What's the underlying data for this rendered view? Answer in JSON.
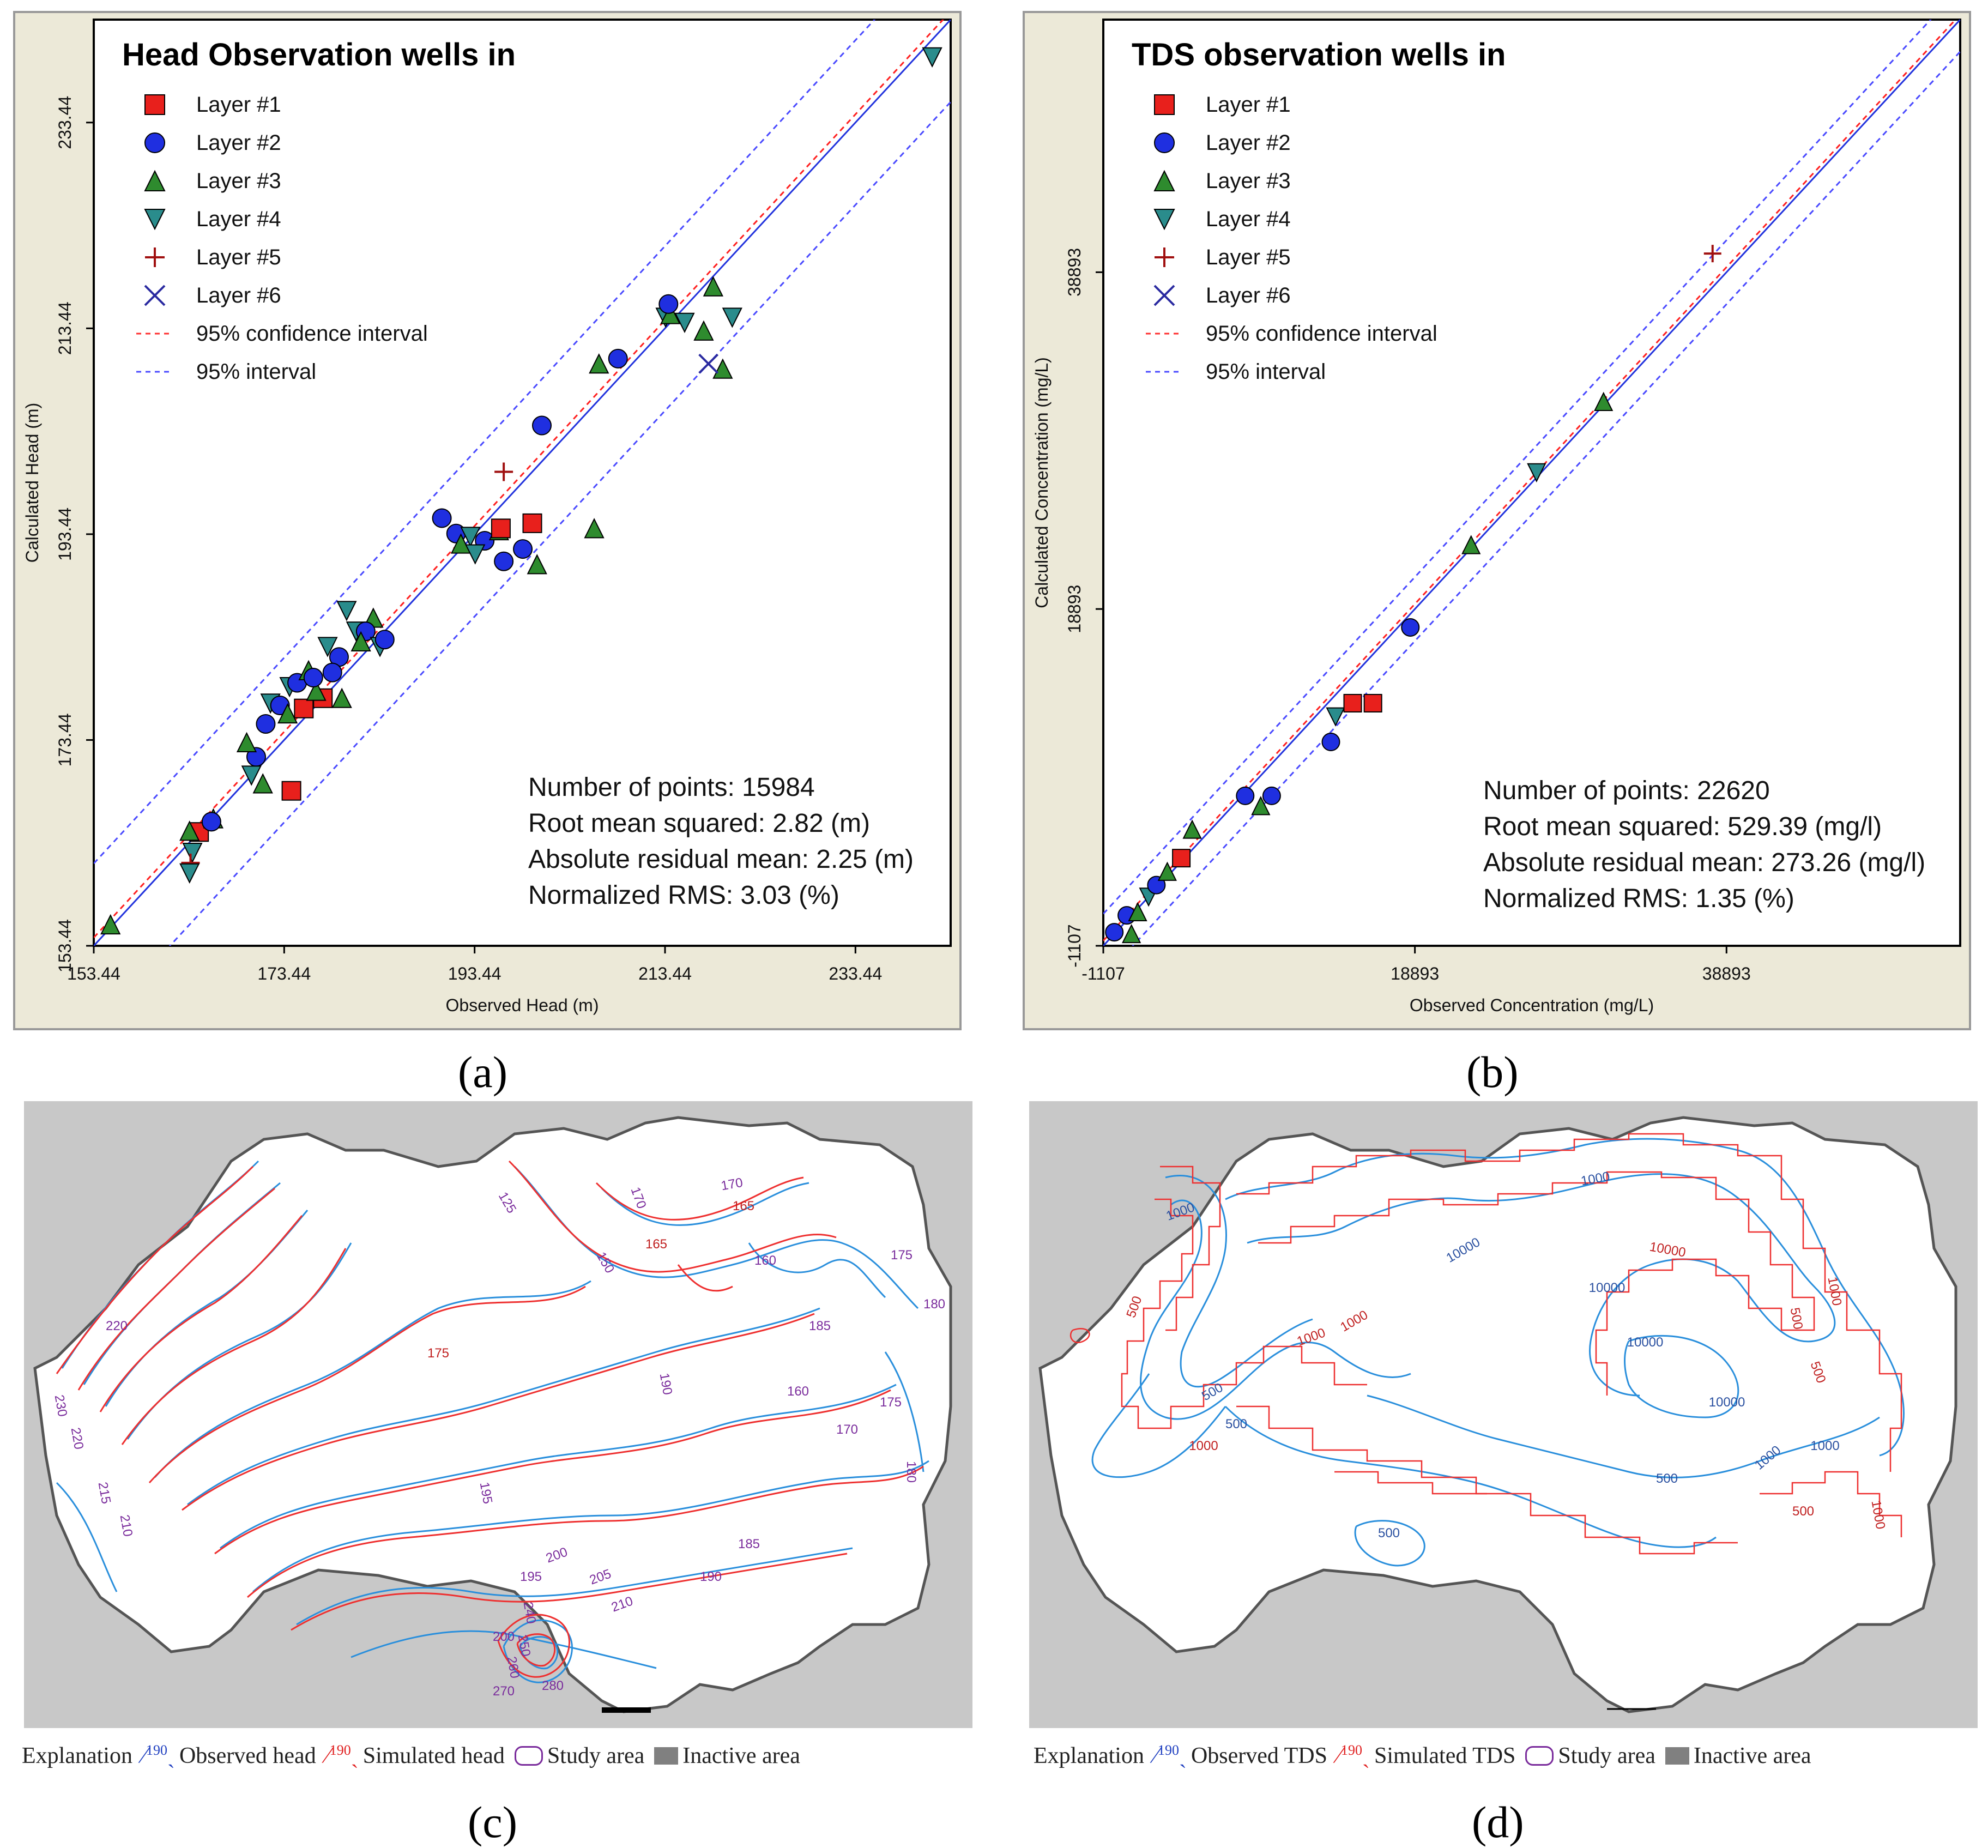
{
  "captions": {
    "a": "(a)",
    "b": "(b)",
    "c": "(c)",
    "d": "(d)"
  },
  "chart_data": [
    {
      "type": "scatter",
      "id": "a",
      "title": "Head Observation wells in",
      "xlabel": "Observed Head (m)",
      "ylabel": "Calculated Head (m)",
      "xlim": [
        153.44,
        243.44
      ],
      "ylim": [
        153.44,
        243.44
      ],
      "ticks": [
        "153.44",
        "173.44",
        "193.44",
        "213.44",
        "233.44"
      ],
      "legend": [
        {
          "label": "Layer #1",
          "marker": "square",
          "color": "#e8201c"
        },
        {
          "label": "Layer #2",
          "marker": "circle",
          "color": "#1f2fe0"
        },
        {
          "label": "Layer #3",
          "marker": "triangle-up",
          "color": "#2e8b2e"
        },
        {
          "label": "Layer #4",
          "marker": "triangle-down",
          "color": "#2a8c8c"
        },
        {
          "label": "Layer #5",
          "marker": "plus",
          "color": "#a01010"
        },
        {
          "label": "Layer #6",
          "marker": "x",
          "color": "#2a2aa0"
        },
        {
          "label": "95% confidence interval",
          "marker": "dash",
          "color": "#ff3030"
        },
        {
          "label": "95% interval",
          "marker": "dash",
          "color": "#4a4aff"
        }
      ],
      "stats": [
        "Number of points: 15984",
        "Root mean squared: 2.82 (m)",
        "Absolute residual mean: 2.25 (m)",
        "Normalized RMS: 3.03 (%)"
      ],
      "points": [
        {
          "s": 3,
          "x": 155.2,
          "y": 155.5
        },
        {
          "s": 1,
          "x": 164.5,
          "y": 164.5
        },
        {
          "s": 3,
          "x": 163.5,
          "y": 164.6
        },
        {
          "s": 3,
          "x": 166.0,
          "y": 165.8
        },
        {
          "s": 2,
          "x": 165.8,
          "y": 165.5
        },
        {
          "s": 4,
          "x": 163.8,
          "y": 162.5
        },
        {
          "s": 5,
          "x": 163.6,
          "y": 161.5
        },
        {
          "s": 4,
          "x": 163.5,
          "y": 160.5
        },
        {
          "s": 1,
          "x": 174.2,
          "y": 168.5
        },
        {
          "s": 2,
          "x": 170.5,
          "y": 171.8
        },
        {
          "s": 3,
          "x": 171.2,
          "y": 169.2
        },
        {
          "s": 4,
          "x": 170.0,
          "y": 170.0
        },
        {
          "s": 3,
          "x": 169.5,
          "y": 173.2
        },
        {
          "s": 2,
          "x": 171.5,
          "y": 175.0
        },
        {
          "s": 4,
          "x": 172.0,
          "y": 177.0
        },
        {
          "s": 2,
          "x": 173.0,
          "y": 176.8
        },
        {
          "s": 1,
          "x": 175.5,
          "y": 176.5
        },
        {
          "s": 1,
          "x": 177.5,
          "y": 177.5
        },
        {
          "s": 3,
          "x": 176.8,
          "y": 178.2
        },
        {
          "s": 4,
          "x": 174.0,
          "y": 178.6
        },
        {
          "s": 2,
          "x": 174.8,
          "y": 179.0
        },
        {
          "s": 3,
          "x": 179.5,
          "y": 177.5
        },
        {
          "s": 4,
          "x": 178.0,
          "y": 182.5
        },
        {
          "s": 2,
          "x": 179.2,
          "y": 181.5
        },
        {
          "s": 4,
          "x": 181.0,
          "y": 184.0
        },
        {
          "s": 3,
          "x": 182.8,
          "y": 185.3
        },
        {
          "s": 2,
          "x": 182.0,
          "y": 184.0
        },
        {
          "s": 4,
          "x": 183.5,
          "y": 182.5
        },
        {
          "s": 2,
          "x": 184.0,
          "y": 183.2
        },
        {
          "s": 3,
          "x": 181.5,
          "y": 183.0
        },
        {
          "s": 2,
          "x": 178.5,
          "y": 180.0
        },
        {
          "s": 4,
          "x": 180.0,
          "y": 186.0
        },
        {
          "s": 3,
          "x": 176.0,
          "y": 180.2
        },
        {
          "s": 2,
          "x": 176.5,
          "y": 179.5
        },
        {
          "s": 3,
          "x": 173.8,
          "y": 176.0
        },
        {
          "s": 2,
          "x": 190.0,
          "y": 195.0
        },
        {
          "s": 2,
          "x": 191.5,
          "y": 193.5
        },
        {
          "s": 3,
          "x": 192.0,
          "y": 192.5
        },
        {
          "s": 4,
          "x": 193.0,
          "y": 193.2
        },
        {
          "s": 2,
          "x": 194.5,
          "y": 192.8
        },
        {
          "s": 3,
          "x": 196.0,
          "y": 193.8
        },
        {
          "s": 1,
          "x": 196.2,
          "y": 194.0
        },
        {
          "s": 1,
          "x": 199.5,
          "y": 194.5
        },
        {
          "s": 2,
          "x": 198.5,
          "y": 192.0
        },
        {
          "s": 4,
          "x": 193.5,
          "y": 191.5
        },
        {
          "s": 3,
          "x": 200.0,
          "y": 190.5
        },
        {
          "s": 2,
          "x": 196.5,
          "y": 190.8
        },
        {
          "s": 3,
          "x": 206.0,
          "y": 194.0
        },
        {
          "s": 5,
          "x": 196.5,
          "y": 199.5
        },
        {
          "s": 2,
          "x": 200.5,
          "y": 204.0
        },
        {
          "s": 3,
          "x": 206.5,
          "y": 210.0
        },
        {
          "s": 2,
          "x": 208.5,
          "y": 210.5
        },
        {
          "s": 4,
          "x": 213.5,
          "y": 214.5
        },
        {
          "s": 3,
          "x": 214.0,
          "y": 214.8
        },
        {
          "s": 4,
          "x": 215.5,
          "y": 214.0
        },
        {
          "s": 3,
          "x": 217.5,
          "y": 213.2
        },
        {
          "s": 2,
          "x": 213.8,
          "y": 215.8
        },
        {
          "s": 4,
          "x": 220.5,
          "y": 214.5
        },
        {
          "s": 3,
          "x": 218.5,
          "y": 217.5
        },
        {
          "s": 3,
          "x": 219.5,
          "y": 209.5
        },
        {
          "s": 6,
          "x": 218.0,
          "y": 210.0
        },
        {
          "s": 4,
          "x": 241.5,
          "y": 239.8
        }
      ]
    },
    {
      "type": "scatter",
      "id": "b",
      "title": "TDS observation wells in",
      "xlabel": "Observed Concentration (mg/L)",
      "ylabel": "Calculated Concentration (mg/L)",
      "xlim": [
        -1107,
        53893
      ],
      "ylim": [
        -1107,
        53893
      ],
      "ticks": [
        "-1107",
        "18893",
        "38893"
      ],
      "legend": [
        {
          "label": "Layer #1",
          "marker": "square",
          "color": "#e8201c"
        },
        {
          "label": "Layer #2",
          "marker": "circle",
          "color": "#1f2fe0"
        },
        {
          "label": "Layer #3",
          "marker": "triangle-up",
          "color": "#2e8b2e"
        },
        {
          "label": "Layer #4",
          "marker": "triangle-down",
          "color": "#2a8c8c"
        },
        {
          "label": "Layer #5",
          "marker": "plus",
          "color": "#a01010"
        },
        {
          "label": "Layer #6",
          "marker": "x",
          "color": "#2a2aa0"
        },
        {
          "label": "95% confidence interval",
          "marker": "dash",
          "color": "#ff3030"
        },
        {
          "label": "95% interval",
          "marker": "dash",
          "color": "#4a4aff"
        }
      ],
      "stats": [
        "Number of points: 22620",
        "Root mean squared: 529.39 (mg/l)",
        "Absolute residual mean: 273.26 (mg/l)",
        "Normalized RMS: 1.35 (%)"
      ],
      "points": [
        {
          "s": 2,
          "x": -400,
          "y": -300
        },
        {
          "s": 3,
          "x": 700,
          "y": -400
        },
        {
          "s": 2,
          "x": 400,
          "y": 700
        },
        {
          "s": 3,
          "x": 1100,
          "y": 900
        },
        {
          "s": 4,
          "x": 1800,
          "y": 1800
        },
        {
          "s": 2,
          "x": 2300,
          "y": 2500
        },
        {
          "s": 3,
          "x": 3000,
          "y": 3300
        },
        {
          "s": 1,
          "x": 3900,
          "y": 4100
        },
        {
          "s": 3,
          "x": 4600,
          "y": 5800
        },
        {
          "s": 2,
          "x": 8000,
          "y": 7800
        },
        {
          "s": 2,
          "x": 9700,
          "y": 7800
        },
        {
          "s": 3,
          "x": 9000,
          "y": 7200
        },
        {
          "s": 2,
          "x": 13500,
          "y": 11000
        },
        {
          "s": 4,
          "x": 13800,
          "y": 12500
        },
        {
          "s": 1,
          "x": 14900,
          "y": 13300
        },
        {
          "s": 1,
          "x": 16200,
          "y": 13300
        },
        {
          "s": 2,
          "x": 18600,
          "y": 17800
        },
        {
          "s": 3,
          "x": 22500,
          "y": 22700
        },
        {
          "s": 4,
          "x": 26700,
          "y": 27000
        },
        {
          "s": 3,
          "x": 31000,
          "y": 31200
        },
        {
          "s": 5,
          "x": 38000,
          "y": 40000
        }
      ]
    }
  ],
  "maps": {
    "c": {
      "legend_title": "Explanation",
      "items": [
        {
          "sample": "190",
          "label": "Observed head"
        },
        {
          "sample": "190",
          "label": "Simulated head"
        },
        {
          "label": "Study area"
        },
        {
          "label": "Inactive area"
        }
      ],
      "contour_labels": [
        "170",
        "165",
        "160",
        "175",
        "180",
        "185",
        "190",
        "195",
        "200",
        "205",
        "210",
        "220",
        "125",
        "150",
        "165",
        "170",
        "175",
        "160",
        "170",
        "175",
        "180",
        "185",
        "190",
        "195",
        "200",
        "210",
        "215",
        "220",
        "230",
        "240",
        "250",
        "260",
        "270",
        "280"
      ]
    },
    "d": {
      "legend_title": "Explanation",
      "items": [
        {
          "sample": "190",
          "label": "Observed TDS"
        },
        {
          "sample": "190",
          "label": "Simulated TDS"
        },
        {
          "label": "Study area"
        },
        {
          "label": "Inactive area"
        }
      ],
      "contour_labels": [
        "1000",
        "1000",
        "10000",
        "10000",
        "10000",
        "1000",
        "500",
        "500",
        "500",
        "500",
        "1000",
        "1000",
        "1000",
        "10000",
        "10000",
        "500",
        "1000",
        "500",
        "500",
        "1000",
        "500",
        "1000"
      ]
    }
  }
}
